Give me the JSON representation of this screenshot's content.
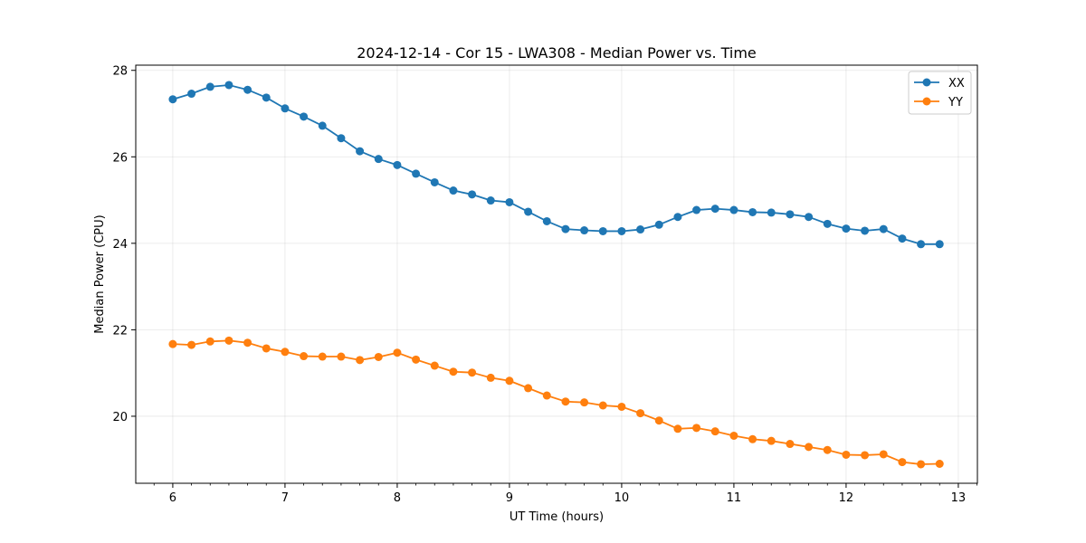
{
  "chart_data": {
    "type": "line",
    "title": "2024-12-14 - Cor 15 - LWA308 - Median Power vs. Time",
    "xlabel": "UT Time (hours)",
    "ylabel": "Median Power (CPU)",
    "xlim": [
      5.67,
      13.17
    ],
    "ylim": [
      18.45,
      28.12
    ],
    "xticks": [
      6,
      7,
      8,
      9,
      10,
      11,
      12,
      13
    ],
    "yticks": [
      20,
      22,
      24,
      26,
      28
    ],
    "grid": true,
    "legend_position": "top-right",
    "x": [
      6.0,
      6.1667,
      6.3333,
      6.5,
      6.6667,
      6.8333,
      7.0,
      7.1667,
      7.3333,
      7.5,
      7.6667,
      7.8333,
      8.0,
      8.1667,
      8.3333,
      8.5,
      8.6667,
      8.8333,
      9.0,
      9.1667,
      9.3333,
      9.5,
      9.6667,
      9.8333,
      10.0,
      10.1667,
      10.3333,
      10.5,
      10.6667,
      10.8333,
      11.0,
      11.1667,
      11.3333,
      11.5,
      11.6667,
      11.8333,
      12.0,
      12.1667,
      12.3333,
      12.5,
      12.6667,
      12.8333
    ],
    "series": [
      {
        "name": "XX",
        "color": "#1f77b4",
        "values": [
          27.33,
          27.46,
          27.62,
          27.66,
          27.55,
          27.37,
          27.12,
          26.93,
          26.72,
          26.43,
          26.13,
          25.95,
          25.81,
          25.61,
          25.41,
          25.22,
          25.13,
          24.99,
          24.95,
          24.73,
          24.51,
          24.33,
          24.3,
          24.28,
          24.28,
          24.32,
          24.43,
          24.61,
          24.77,
          24.8,
          24.77,
          24.72,
          24.71,
          24.67,
          24.61,
          24.45,
          24.34,
          24.29,
          24.33,
          24.11,
          23.98,
          23.98
        ]
      },
      {
        "name": "YY",
        "color": "#ff7f0e",
        "values": [
          21.67,
          21.65,
          21.73,
          21.75,
          21.7,
          21.57,
          21.49,
          21.39,
          21.38,
          21.38,
          21.3,
          21.37,
          21.47,
          21.31,
          21.17,
          21.03,
          21.01,
          20.89,
          20.82,
          20.65,
          20.48,
          20.34,
          20.32,
          20.25,
          20.22,
          20.07,
          19.9,
          19.71,
          19.73,
          19.65,
          19.55,
          19.47,
          19.43,
          19.36,
          19.29,
          19.22,
          19.11,
          19.1,
          19.12,
          18.94,
          18.89,
          18.9
        ]
      }
    ]
  }
}
